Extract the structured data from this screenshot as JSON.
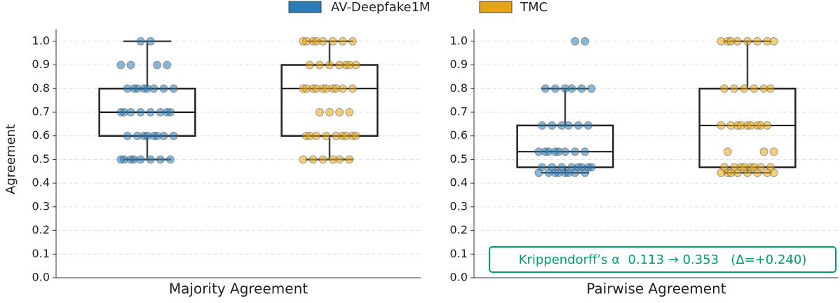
{
  "legend": [
    {
      "name": "AV-Deepfake1M",
      "color": "#2b7bb6"
    },
    {
      "name": "TMC",
      "color": "#e6a517"
    }
  ],
  "chart_data": [
    {
      "type": "box",
      "xlabel": "Majority Agreement",
      "ylabel": "Agreement",
      "ylim": [
        0,
        1.05
      ],
      "yticks": [
        {
          "value": 0,
          "label": "0.0"
        },
        0.1,
        0.2,
        0.3,
        0.4,
        0.5,
        0.6,
        0.7,
        0.8,
        0.9,
        {
          "value": 1,
          "label": "1.0"
        }
      ],
      "grid": true,
      "series": [
        {
          "whislo": 0.5,
          "q1": 0.6,
          "med": 0.7,
          "q3": 0.8,
          "whishi": 1.0,
          "values": [
            0.5,
            0.5,
            0.5,
            0.5,
            0.5,
            0.5,
            0.5,
            0.5,
            0.6,
            0.6,
            0.6,
            0.6,
            0.6,
            0.6,
            0.6,
            0.6,
            0.7,
            0.7,
            0.7,
            0.7,
            0.7,
            0.7,
            0.7,
            0.7,
            0.8,
            0.8,
            0.8,
            0.8,
            0.8,
            0.8,
            0.8,
            0.8,
            0.9,
            0.9,
            0.9,
            0.9,
            1.0,
            1.0
          ]
        },
        {
          "whislo": 0.5,
          "q1": 0.6,
          "med": 0.8,
          "q3": 0.9,
          "whishi": 1.0,
          "values": [
            0.5,
            0.5,
            0.5,
            0.5,
            0.5,
            0.5,
            0.6,
            0.6,
            0.6,
            0.6,
            0.6,
            0.6,
            0.6,
            0.6,
            0.6,
            0.7,
            0.7,
            0.7,
            0.7,
            0.8,
            0.8,
            0.8,
            0.8,
            0.8,
            0.8,
            0.8,
            0.8,
            0.8,
            0.8,
            0.9,
            0.9,
            0.9,
            0.9,
            0.9,
            0.9,
            0.9,
            1.0,
            1.0,
            1.0,
            1.0,
            1.0,
            1.0,
            1.0,
            1.0
          ]
        }
      ]
    },
    {
      "type": "box",
      "xlabel": "Pairwise Agreement",
      "ylim": [
        0,
        1.05
      ],
      "yticks": [
        {
          "value": 0,
          "label": "0.0"
        },
        0.1,
        0.2,
        0.3,
        0.4,
        0.5,
        0.6,
        0.7,
        0.8,
        0.9,
        {
          "value": 1,
          "label": "1.0"
        }
      ],
      "grid": true,
      "annotation": "Krippendorff’s α  0.113 → 0.353   (Δ=+0.240)",
      "annotation_color": "#009e73",
      "series": [
        {
          "whislo": 0.444,
          "q1": 0.467,
          "med": 0.533,
          "q3": 0.644,
          "whishi": 0.8,
          "values": [
            0.444,
            0.444,
            0.444,
            0.444,
            0.444,
            0.444,
            0.444,
            0.444,
            0.467,
            0.467,
            0.467,
            0.467,
            0.467,
            0.467,
            0.467,
            0.467,
            0.533,
            0.533,
            0.533,
            0.533,
            0.533,
            0.533,
            0.533,
            0.533,
            0.644,
            0.644,
            0.644,
            0.644,
            0.644,
            0.644,
            0.8,
            0.8,
            0.8,
            0.8,
            0.8,
            0.8,
            1.0,
            1.0
          ]
        },
        {
          "whislo": 0.444,
          "q1": 0.467,
          "med": 0.644,
          "q3": 0.8,
          "whishi": 1.0,
          "values": [
            0.444,
            0.444,
            0.444,
            0.444,
            0.444,
            0.444,
            0.444,
            0.444,
            0.467,
            0.467,
            0.467,
            0.467,
            0.467,
            0.467,
            0.467,
            0.467,
            0.533,
            0.533,
            0.533,
            0.644,
            0.644,
            0.644,
            0.644,
            0.644,
            0.644,
            0.644,
            0.644,
            0.644,
            0.8,
            0.8,
            0.8,
            0.8,
            0.8,
            0.8,
            1.0,
            1.0,
            1.0,
            1.0,
            1.0,
            1.0,
            1.0,
            1.0
          ]
        }
      ]
    }
  ]
}
